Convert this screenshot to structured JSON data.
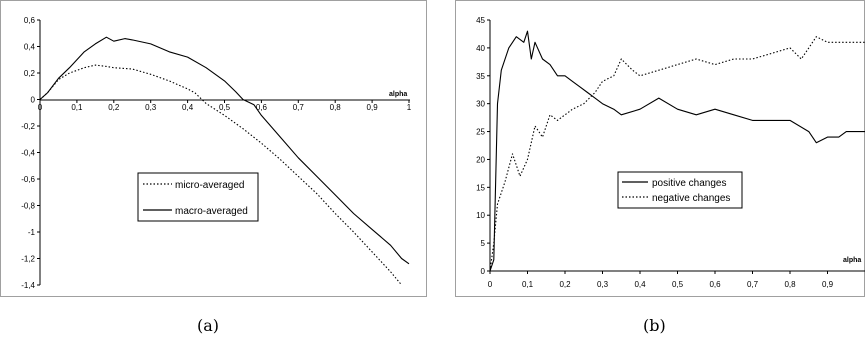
{
  "chart_data": [
    {
      "type": "line",
      "panel_label": "(a)",
      "xlabel": "alpha",
      "ylabel": "",
      "title": "",
      "xlim": [
        0,
        1
      ],
      "ylim": [
        -1.4,
        0.6
      ],
      "x_ticks": [
        "0",
        "0,1",
        "0,2",
        "0,3",
        "0,4",
        "0,5",
        "0,6",
        "0,7",
        "0,8",
        "0,9",
        "1"
      ],
      "y_ticks": [
        "0,6",
        "0,4",
        "0,2",
        "0",
        "-0,2",
        "-0,4",
        "-0,6",
        "-0,8",
        "-1",
        "-1,2",
        "-1,4"
      ],
      "legend_position": "center-right",
      "series": [
        {
          "name": "micro-averaged",
          "style": "dotted",
          "x": [
            0,
            0.02,
            0.05,
            0.08,
            0.1,
            0.12,
            0.15,
            0.18,
            0.2,
            0.25,
            0.3,
            0.35,
            0.4,
            0.42,
            0.45,
            0.5,
            0.55,
            0.6,
            0.65,
            0.7,
            0.75,
            0.8,
            0.85,
            0.9,
            0.95,
            0.98
          ],
          "y": [
            0,
            0.05,
            0.15,
            0.2,
            0.22,
            0.24,
            0.26,
            0.25,
            0.24,
            0.23,
            0.19,
            0.14,
            0.08,
            0.05,
            -0.03,
            -0.12,
            -0.22,
            -0.33,
            -0.45,
            -0.58,
            -0.71,
            -0.86,
            -1.0,
            -1.15,
            -1.3,
            -1.4
          ]
        },
        {
          "name": "macro-averaged",
          "style": "solid",
          "x": [
            0,
            0.02,
            0.05,
            0.08,
            0.1,
            0.12,
            0.15,
            0.18,
            0.2,
            0.23,
            0.25,
            0.3,
            0.35,
            0.4,
            0.45,
            0.5,
            0.53,
            0.55,
            0.58,
            0.6,
            0.65,
            0.7,
            0.75,
            0.8,
            0.85,
            0.9,
            0.95,
            0.98,
            1.0
          ],
          "y": [
            0,
            0.05,
            0.16,
            0.24,
            0.3,
            0.36,
            0.42,
            0.47,
            0.44,
            0.46,
            0.45,
            0.42,
            0.36,
            0.32,
            0.24,
            0.14,
            0.06,
            0.0,
            -0.04,
            -0.12,
            -0.28,
            -0.44,
            -0.58,
            -0.72,
            -0.86,
            -0.98,
            -1.1,
            -1.2,
            -1.24
          ]
        }
      ]
    },
    {
      "type": "line",
      "panel_label": "(b)",
      "xlabel": "alpha",
      "ylabel": "",
      "title": "",
      "xlim": [
        0,
        1
      ],
      "ylim": [
        0,
        45
      ],
      "x_ticks": [
        "0",
        "0,1",
        "0,2",
        "0,3",
        "0,4",
        "0,5",
        "0,6",
        "0,7",
        "0,8",
        "0,9"
      ],
      "y_ticks": [
        "45",
        "40",
        "35",
        "30",
        "25",
        "20",
        "15",
        "10",
        "5",
        "0"
      ],
      "legend_position": "center-left",
      "series": [
        {
          "name": "positive changes",
          "style": "solid",
          "x": [
            0,
            0.01,
            0.02,
            0.03,
            0.05,
            0.07,
            0.09,
            0.1,
            0.11,
            0.12,
            0.14,
            0.16,
            0.18,
            0.2,
            0.22,
            0.24,
            0.26,
            0.28,
            0.3,
            0.33,
            0.35,
            0.4,
            0.45,
            0.5,
            0.55,
            0.6,
            0.65,
            0.7,
            0.75,
            0.8,
            0.85,
            0.87,
            0.9,
            0.93,
            0.95,
            1.0
          ],
          "y": [
            0,
            2,
            30,
            36,
            40,
            42,
            41,
            43,
            38,
            41,
            38,
            37,
            35,
            35,
            34,
            33,
            32,
            31,
            30,
            29,
            28,
            29,
            31,
            29,
            28,
            29,
            28,
            27,
            27,
            27,
            25,
            23,
            24,
            24,
            25,
            25
          ]
        },
        {
          "name": "negative changes",
          "style": "dotted",
          "x": [
            0,
            0.01,
            0.02,
            0.04,
            0.06,
            0.08,
            0.1,
            0.12,
            0.14,
            0.16,
            0.18,
            0.2,
            0.22,
            0.25,
            0.28,
            0.3,
            0.33,
            0.35,
            0.38,
            0.4,
            0.45,
            0.5,
            0.55,
            0.6,
            0.65,
            0.7,
            0.75,
            0.8,
            0.83,
            0.85,
            0.87,
            0.9,
            0.95,
            1.0
          ],
          "y": [
            0,
            5,
            12,
            16,
            21,
            17,
            20,
            26,
            24,
            28,
            27,
            28,
            29,
            30,
            32,
            34,
            35,
            38,
            36,
            35,
            36,
            37,
            38,
            37,
            38,
            38,
            39,
            40,
            38,
            40,
            42,
            41,
            41,
            41
          ]
        }
      ]
    }
  ]
}
